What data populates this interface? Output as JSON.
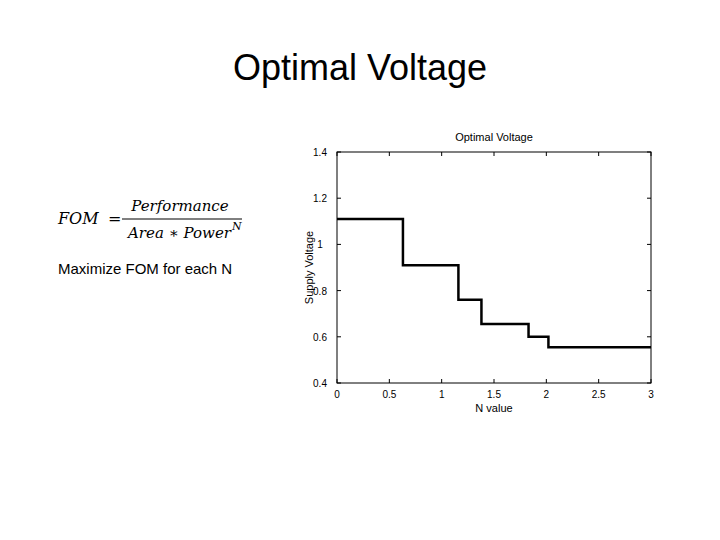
{
  "slide": {
    "title": "Optimal Voltage",
    "formula": {
      "lhs": "FOM",
      "equals": "=",
      "numerator": "Performance",
      "denominator": "Area ∗ Power",
      "exponent": "N"
    },
    "note": "Maximize FOM for each N"
  },
  "chart_data": {
    "type": "line",
    "title": "Optimal Voltage",
    "x_label": "N value",
    "y_label": "Supply Voltage",
    "x": [
      0,
      0.63,
      0.63,
      1.16,
      1.16,
      1.38,
      1.38,
      1.83,
      1.83,
      2.02,
      2.02,
      3
    ],
    "values": [
      1.11,
      1.11,
      0.91,
      0.91,
      0.76,
      0.76,
      0.655,
      0.655,
      0.6,
      0.6,
      0.555,
      0.555
    ],
    "color": "#000000",
    "line_style": "solid",
    "grid": false,
    "xlim": [
      0,
      3
    ],
    "xticks": [
      0,
      0.5,
      1,
      1.5,
      2,
      2.5,
      3
    ],
    "ylim": [
      0.4,
      1.4
    ],
    "yticks": [
      0.4,
      0.6,
      0.8,
      1,
      1.2,
      1.4
    ]
  }
}
